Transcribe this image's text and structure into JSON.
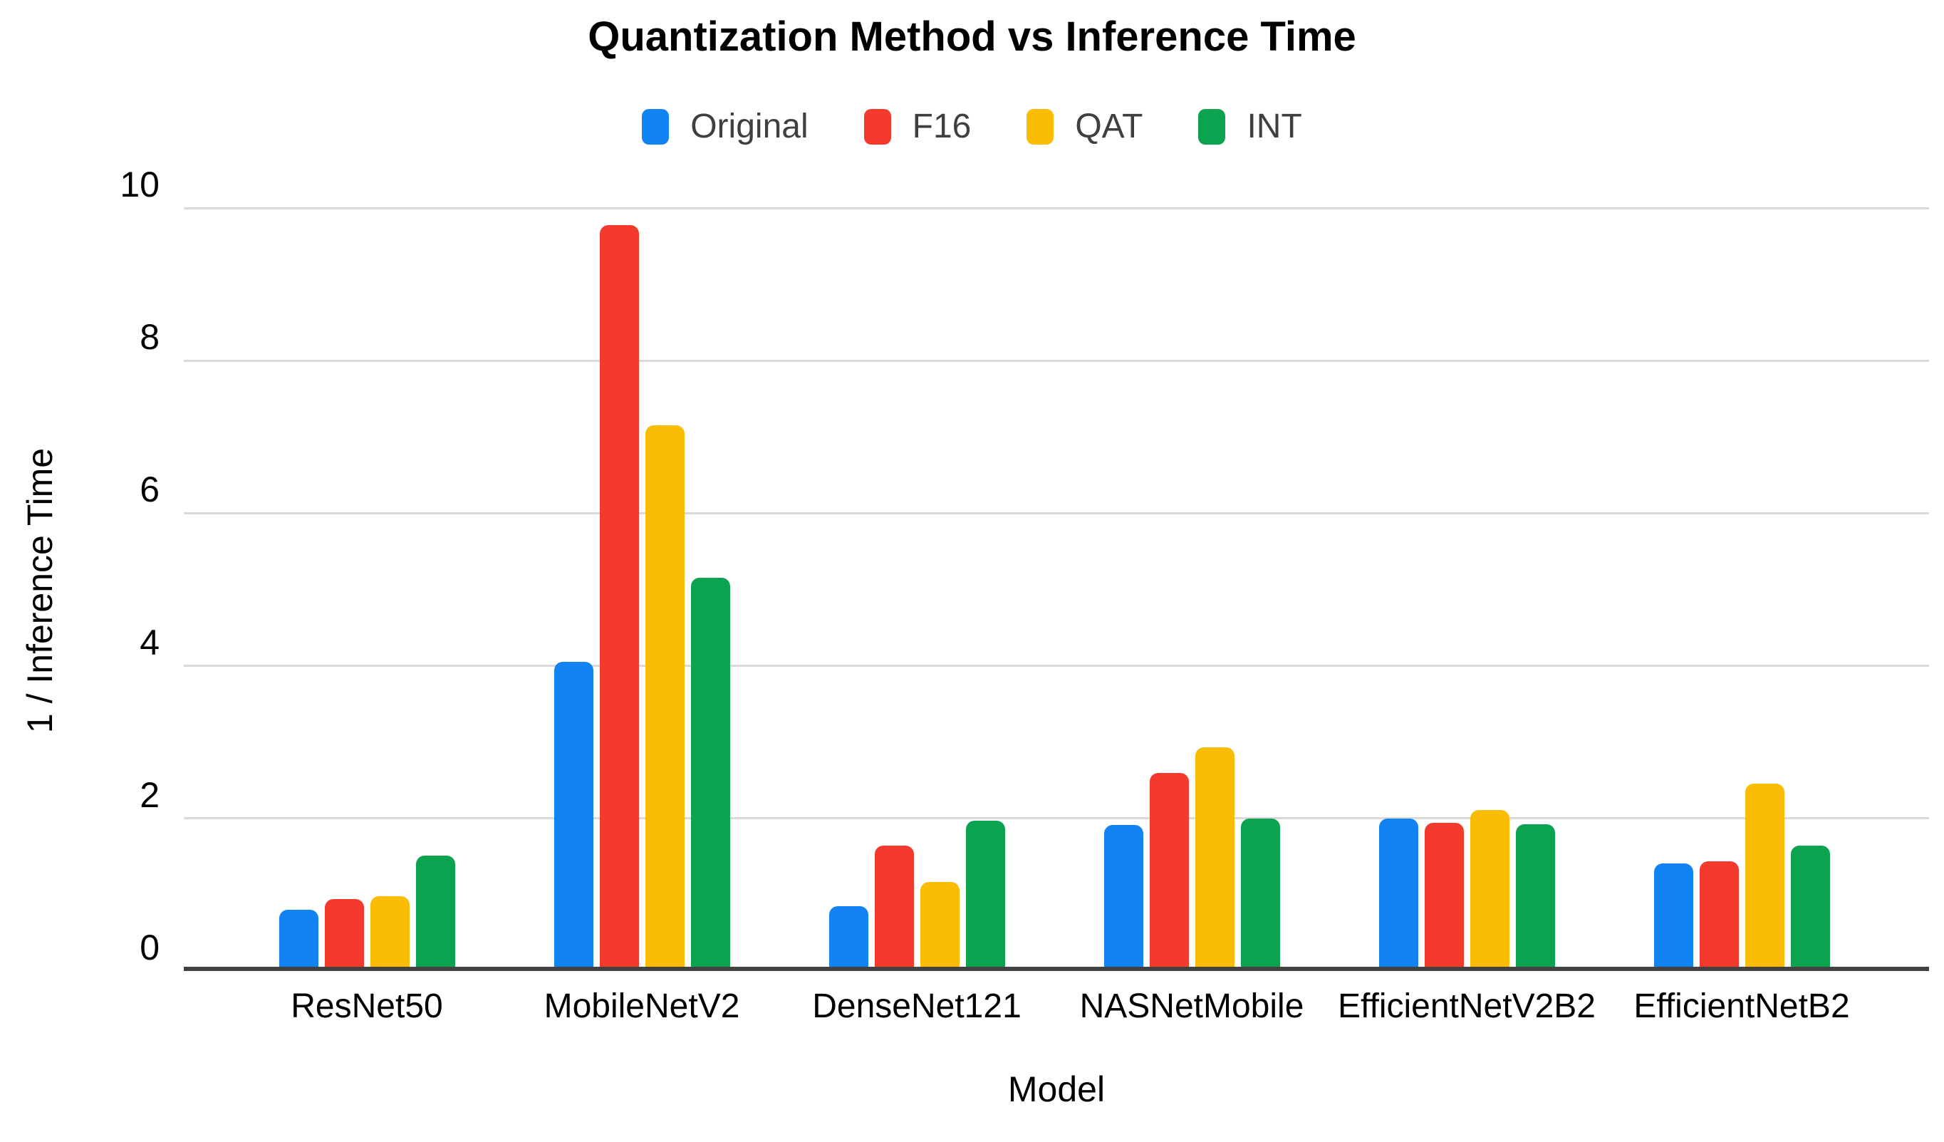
{
  "page": {
    "background": "#ffffff"
  },
  "chart_data": {
    "type": "bar",
    "title": "Quantization Method vs Inference Time",
    "xlabel": "Model",
    "ylabel": "1 / Inference Time",
    "categories": [
      "ResNet50",
      "MobileNetV2",
      "DenseNet121",
      "NASNetMobile",
      "EfficientNetV2B2",
      "EfficientNetB2"
    ],
    "series": [
      {
        "name": "Original",
        "color": "#1283f2",
        "values": [
          0.8,
          4.05,
          0.85,
          1.91,
          2.0,
          1.41
        ]
      },
      {
        "name": "F16",
        "color": "#f4392d",
        "values": [
          0.94,
          9.78,
          1.64,
          2.6,
          1.94,
          1.44
        ]
      },
      {
        "name": "QAT",
        "color": "#fbbc04",
        "values": [
          0.98,
          7.15,
          1.17,
          2.93,
          2.11,
          2.46
        ]
      },
      {
        "name": "INT",
        "color": "#0ca350",
        "values": [
          1.51,
          5.15,
          1.97,
          2.0,
          1.92,
          1.64
        ]
      }
    ],
    "ylim": [
      0,
      10
    ],
    "yticks": [
      0,
      2,
      4,
      6,
      8,
      10
    ],
    "grid": true,
    "legend_position": "top",
    "colors": {
      "gridline": "#d9d9d9",
      "axis_line": "#424242",
      "title_text": "#000000",
      "legend_text": "#3c4043"
    }
  }
}
